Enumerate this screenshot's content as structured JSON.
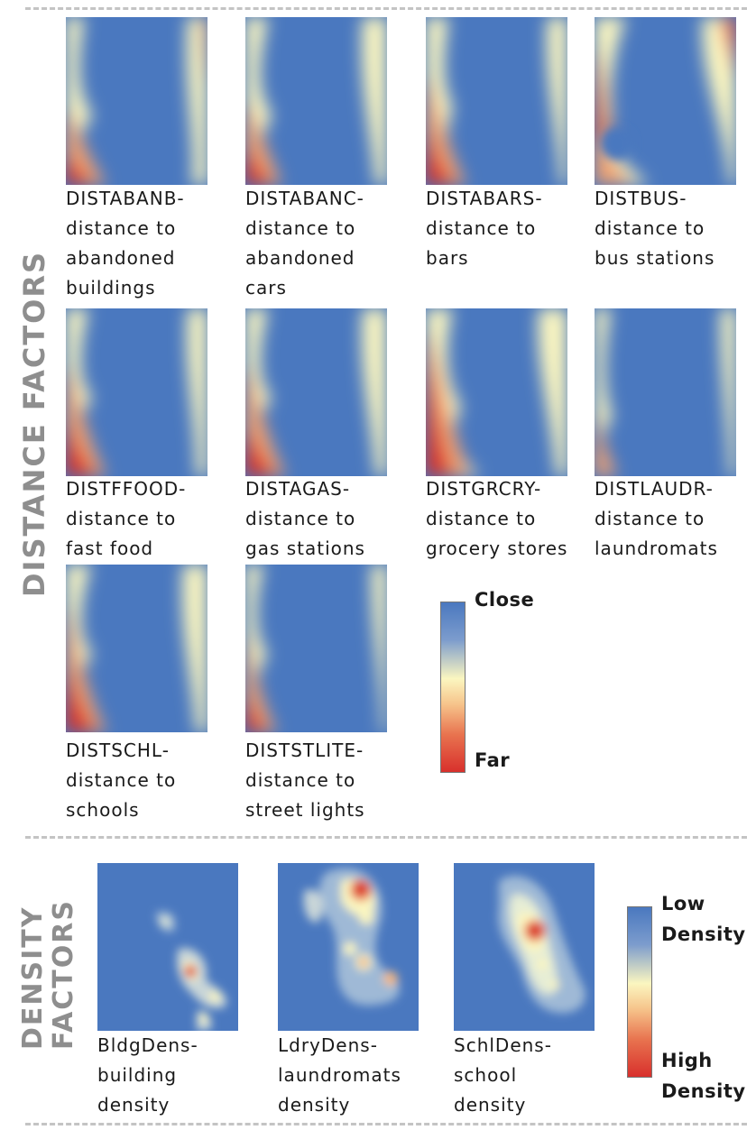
{
  "distance_section": {
    "label": "DISTANCE FACTORS",
    "tiles": [
      {
        "code": "DISTABANB-",
        "line2": "distance to",
        "line3": "abandoned",
        "line4": "buildings"
      },
      {
        "code": "DISTABANC-",
        "line2": "distance to",
        "line3": "abandoned",
        "line4": "cars"
      },
      {
        "code": "DISTABARS-",
        "line2": "distance to",
        "line3": "bars",
        "line4": ""
      },
      {
        "code": "DISTBUS-",
        "line2": "distance to",
        "line3": "bus stations",
        "line4": ""
      },
      {
        "code": "DISTFFOOD-",
        "line2": "distance to",
        "line3": "fast food",
        "line4": ""
      },
      {
        "code": "DISTAGAS-",
        "line2": "distance to",
        "line3": "gas stations",
        "line4": ""
      },
      {
        "code": "DISTGRCRY-",
        "line2": "distance to",
        "line3": "grocery stores",
        "line4": ""
      },
      {
        "code": "DISTLAUDR-",
        "line2": "distance to",
        "line3": "laundromats",
        "line4": ""
      },
      {
        "code": "DISTSCHL-",
        "line2": "distance to",
        "line3": "schools",
        "line4": ""
      },
      {
        "code": "DISTSTLITE-",
        "line2": "distance to",
        "line3": "street lights",
        "line4": ""
      }
    ],
    "legend": {
      "top": "Close",
      "bottom": "Far"
    }
  },
  "density_section": {
    "label_line1": "DENSITY",
    "label_line2": "FACTORS",
    "tiles": [
      {
        "line1": "BldgDens-",
        "line2": "building",
        "line3": "density"
      },
      {
        "line1": "LdryDens-",
        "line2": "laundromats",
        "line3": "density"
      },
      {
        "line1": "SchlDens-",
        "line2": "school",
        "line3": "density"
      }
    ],
    "legend": {
      "top_line1": "Low",
      "top_line2": "Density",
      "bottom_line1": "High",
      "bottom_line2": "Density"
    }
  },
  "colors": {
    "close_blue": "#4a78bf",
    "mid_yellow": "#fbf6c0",
    "far_red": "#d8302c",
    "label_gray": "#8e8e8e"
  }
}
